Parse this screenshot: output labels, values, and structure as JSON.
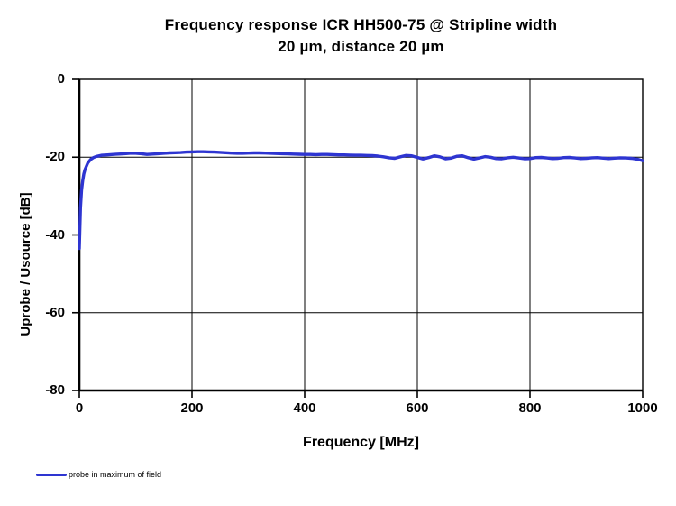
{
  "page": {
    "background": "#ffffff"
  },
  "chart_data": {
    "type": "line",
    "title": "Frequency response ICR HH500-75 @ Stripline width 20 µm, distance 20 µm",
    "title_lines": [
      "Frequency response ICR HH500-75 @ Stripline width",
      "20 µm, distance 20 µm"
    ],
    "xlabel": "Frequency [MHz]",
    "ylabel": "Uprobe / Usource [dB]",
    "xlim": [
      0,
      1000
    ],
    "ylim": [
      -80,
      0
    ],
    "x_ticks": [
      0,
      200,
      400,
      600,
      800,
      1000
    ],
    "y_ticks": [
      0,
      -20,
      -40,
      -60,
      -80
    ],
    "grid": true,
    "grid_color": "#000000",
    "axis_color": "#000000",
    "legend_position": "bottom-left",
    "x": [
      0,
      2,
      4,
      6,
      8,
      10,
      15,
      20,
      25,
      30,
      40,
      50,
      60,
      70,
      80,
      90,
      100,
      110,
      120,
      130,
      140,
      150,
      160,
      170,
      180,
      190,
      200,
      210,
      220,
      230,
      240,
      250,
      260,
      270,
      280,
      290,
      300,
      310,
      320,
      330,
      340,
      350,
      360,
      370,
      380,
      390,
      400,
      410,
      420,
      430,
      440,
      450,
      460,
      470,
      480,
      490,
      500,
      510,
      520,
      530,
      540,
      550,
      560,
      570,
      580,
      590,
      600,
      610,
      620,
      630,
      640,
      650,
      660,
      670,
      680,
      690,
      700,
      710,
      720,
      730,
      740,
      750,
      760,
      770,
      780,
      790,
      800,
      810,
      820,
      830,
      840,
      850,
      860,
      870,
      880,
      890,
      900,
      910,
      920,
      930,
      940,
      950,
      960,
      970,
      980,
      990,
      1000
    ],
    "series": [
      {
        "name": "probe in maximum of field",
        "color": "#2e35d1",
        "values": [
          -43.5,
          -33.0,
          -28.5,
          -26.0,
          -24.3,
          -23.2,
          -21.5,
          -20.6,
          -20.1,
          -19.8,
          -19.5,
          -19.4,
          -19.3,
          -19.2,
          -19.1,
          -19.0,
          -19.0,
          -19.1,
          -19.3,
          -19.2,
          -19.1,
          -19.0,
          -18.9,
          -18.85,
          -18.8,
          -18.7,
          -18.65,
          -18.6,
          -18.6,
          -18.65,
          -18.7,
          -18.75,
          -18.85,
          -18.95,
          -19.0,
          -19.0,
          -18.95,
          -18.9,
          -18.9,
          -18.95,
          -19.0,
          -19.05,
          -19.1,
          -19.15,
          -19.2,
          -19.25,
          -19.3,
          -19.3,
          -19.35,
          -19.3,
          -19.3,
          -19.35,
          -19.4,
          -19.4,
          -19.45,
          -19.5,
          -19.5,
          -19.55,
          -19.6,
          -19.7,
          -19.9,
          -20.15,
          -20.3,
          -19.9,
          -19.55,
          -19.65,
          -20.05,
          -20.45,
          -20.1,
          -19.65,
          -19.9,
          -20.4,
          -20.25,
          -19.75,
          -19.65,
          -20.1,
          -20.5,
          -20.2,
          -19.85,
          -20.0,
          -20.35,
          -20.4,
          -20.15,
          -20.0,
          -20.2,
          -20.4,
          -20.35,
          -20.1,
          -20.05,
          -20.2,
          -20.35,
          -20.3,
          -20.1,
          -20.05,
          -20.2,
          -20.35,
          -20.3,
          -20.15,
          -20.1,
          -20.25,
          -20.35,
          -20.25,
          -20.15,
          -20.2,
          -20.3,
          -20.5,
          -20.9
        ]
      }
    ]
  }
}
